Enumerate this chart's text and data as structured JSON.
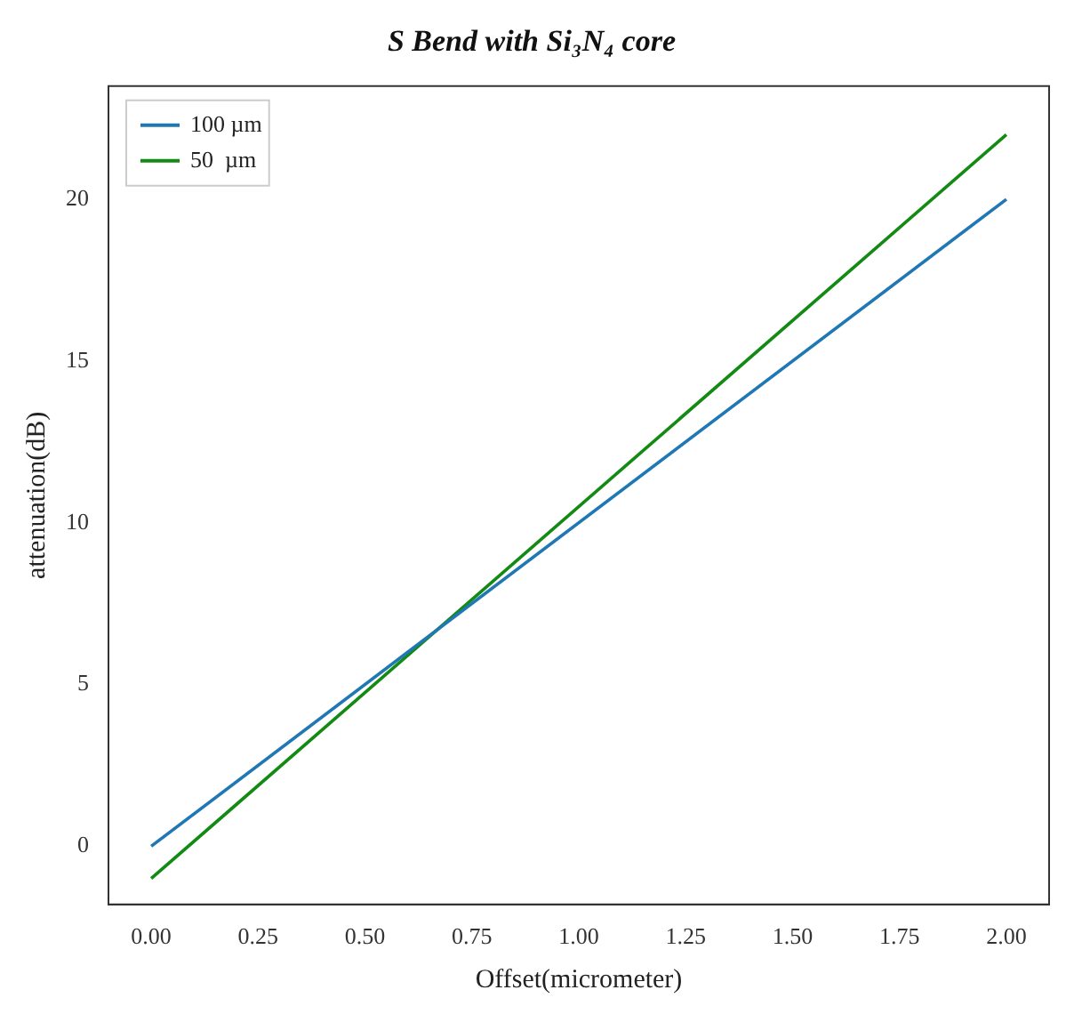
{
  "chart_data": {
    "type": "line",
    "title": "S Bend with Si₃N₄ core",
    "xlabel": "Offset(micrometer)",
    "ylabel": "attenuation(dB)",
    "x": [
      0,
      2
    ],
    "series": [
      {
        "name": "100 µm",
        "color": "#1f77b4",
        "values": [
          0,
          20
        ]
      },
      {
        "name": "50  µm",
        "color": "#138a13",
        "values": [
          -1,
          22
        ]
      }
    ],
    "xlim": [
      -0.1,
      2.1
    ],
    "xticks": [
      {
        "value": 0,
        "label": "0.00"
      },
      {
        "value": 0.25,
        "label": "0.25"
      },
      {
        "value": 0.5,
        "label": "0.50"
      },
      {
        "value": 0.75,
        "label": "0.75"
      },
      {
        "value": 1,
        "label": "1.00"
      },
      {
        "value": 1.25,
        "label": "1.25"
      },
      {
        "value": 1.5,
        "label": "1.50"
      },
      {
        "value": 1.75,
        "label": "1.75"
      },
      {
        "value": 2,
        "label": "2.00"
      }
    ],
    "ylim": [
      -1.8,
      23.5
    ],
    "yticks": [
      0,
      5,
      10,
      15,
      20
    ],
    "grid": false,
    "legend": "top left",
    "marker": "none",
    "line_style": "solid"
  }
}
